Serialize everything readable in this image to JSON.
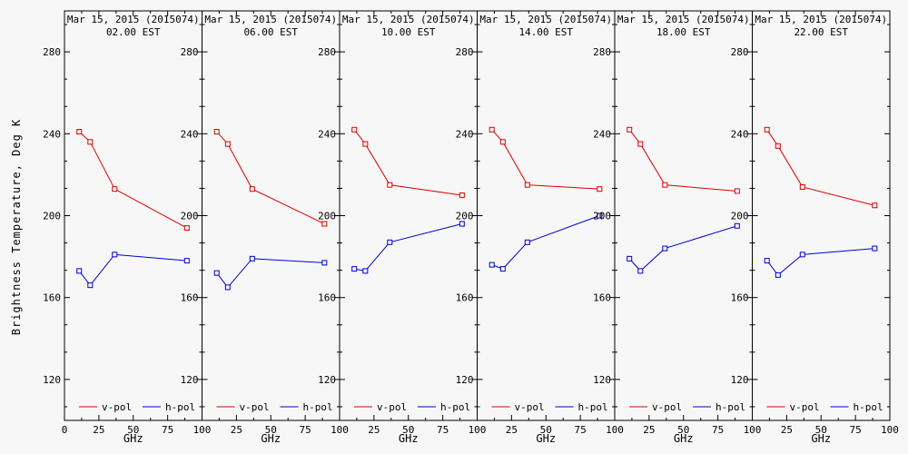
{
  "chart_data": {
    "type": "line",
    "title_date": "Mar 15, 2015 (2015074)",
    "ylabel": "Brightness Temperature, Deg K",
    "xlabel": "GHz",
    "x_ghz": [
      10.7,
      18.7,
      36.5,
      89
    ],
    "xlim": [
      0,
      100
    ],
    "ylim": [
      100,
      300
    ],
    "x_ticks": [
      0,
      25,
      50,
      75,
      100
    ],
    "y_ticks": [
      280,
      240,
      200,
      160,
      120
    ],
    "legend": [
      "v-pol",
      "h-pol"
    ],
    "legend_position": "bottom-inside",
    "grid": "off",
    "colors": {
      "v_pol": "#dd0000",
      "h_pol": "#0000cc",
      "frame": "#000000",
      "background": "#f7f7f7"
    },
    "panels": [
      {
        "time": "02.00 EST",
        "series": [
          {
            "name": "v-pol",
            "values": [
              241,
              236,
              213,
              194
            ]
          },
          {
            "name": "h-pol",
            "values": [
              173,
              166,
              181,
              178
            ]
          }
        ]
      },
      {
        "time": "06.00 EST",
        "series": [
          {
            "name": "v-pol",
            "values": [
              241,
              235,
              213,
              196
            ]
          },
          {
            "name": "h-pol",
            "values": [
              172,
              165,
              179,
              177
            ]
          }
        ]
      },
      {
        "time": "10.00 EST",
        "series": [
          {
            "name": "v-pol",
            "values": [
              242,
              235,
              215,
              210
            ]
          },
          {
            "name": "h-pol",
            "values": [
              174,
              173,
              187,
              196
            ]
          }
        ]
      },
      {
        "time": "14.00 EST",
        "series": [
          {
            "name": "v-pol",
            "values": [
              242,
              236,
              215,
              213
            ]
          },
          {
            "name": "h-pol",
            "values": [
              176,
              174,
              187,
              200
            ]
          }
        ]
      },
      {
        "time": "18.00 EST",
        "series": [
          {
            "name": "v-pol",
            "values": [
              242,
              235,
              215,
              212
            ]
          },
          {
            "name": "h-pol",
            "values": [
              179,
              173,
              184,
              195
            ]
          }
        ]
      },
      {
        "time": "22.00 EST",
        "series": [
          {
            "name": "v-pol",
            "values": [
              242,
              234,
              214,
              205
            ]
          },
          {
            "name": "h-pol",
            "values": [
              178,
              171,
              181,
              184
            ]
          }
        ]
      }
    ]
  }
}
